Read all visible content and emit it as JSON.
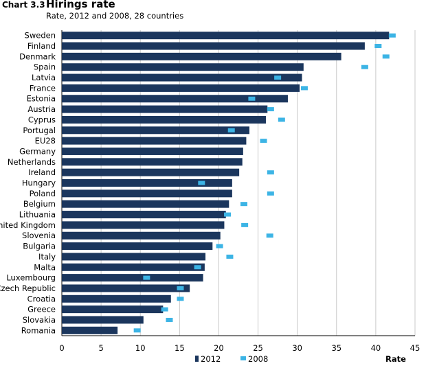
{
  "header": {
    "chart_number": "Chart 3.3",
    "title": "Hirings rate",
    "subtitle": "Rate, 2012 and 2008, 28 countries"
  },
  "colors": {
    "bar_2012": "#1b365d",
    "marker_2008": "#3cb4e5",
    "gridline": "#c8c8c8",
    "axis": "#000000"
  },
  "chart_data": {
    "type": "bar",
    "orientation": "horizontal",
    "title": "Hirings rate",
    "subtitle": "Rate, 2012 and 2008, 28 countries",
    "xlabel": "Rate",
    "ylabel": "",
    "xlim": [
      0,
      45
    ],
    "xticks": [
      0,
      5,
      10,
      15,
      20,
      25,
      30,
      35,
      40,
      45
    ],
    "grid": true,
    "legend_position": "bottom",
    "categories": [
      "Sweden",
      "Finland",
      "Denmark",
      "Spain",
      "Latvia",
      "France",
      "Estonia",
      "Austria",
      "Cyprus",
      "Portugal",
      "EU28",
      "Germany",
      "Netherlands",
      "Ireland",
      "Hungary",
      "Poland",
      "Belgium",
      "Lithuania",
      "United Kingdom",
      "Slovenia",
      "Bulgaria",
      "Italy",
      "Malta",
      "Luxembourg",
      "Czech Republic",
      "Croatia",
      "Greece",
      "Slovakia",
      "Romania"
    ],
    "series": [
      {
        "name": "2012",
        "style": "bar",
        "values": [
          41.7,
          38.6,
          35.6,
          30.8,
          30.6,
          30.3,
          28.8,
          26.2,
          26.0,
          23.9,
          23.5,
          23.1,
          23.0,
          22.6,
          21.7,
          21.7,
          21.3,
          20.9,
          20.7,
          20.2,
          19.2,
          18.3,
          18.2,
          18.0,
          16.3,
          13.9,
          12.9,
          10.4,
          7.1
        ]
      },
      {
        "name": "2008",
        "style": "marker",
        "values": [
          42.1,
          40.3,
          41.3,
          38.6,
          27.5,
          30.9,
          24.2,
          26.6,
          28.0,
          21.6,
          25.7,
          null,
          null,
          26.6,
          17.8,
          26.6,
          23.2,
          21.1,
          23.3,
          26.5,
          20.1,
          21.4,
          17.3,
          10.8,
          15.1,
          15.1,
          13.1,
          13.7,
          9.6
        ]
      }
    ]
  }
}
